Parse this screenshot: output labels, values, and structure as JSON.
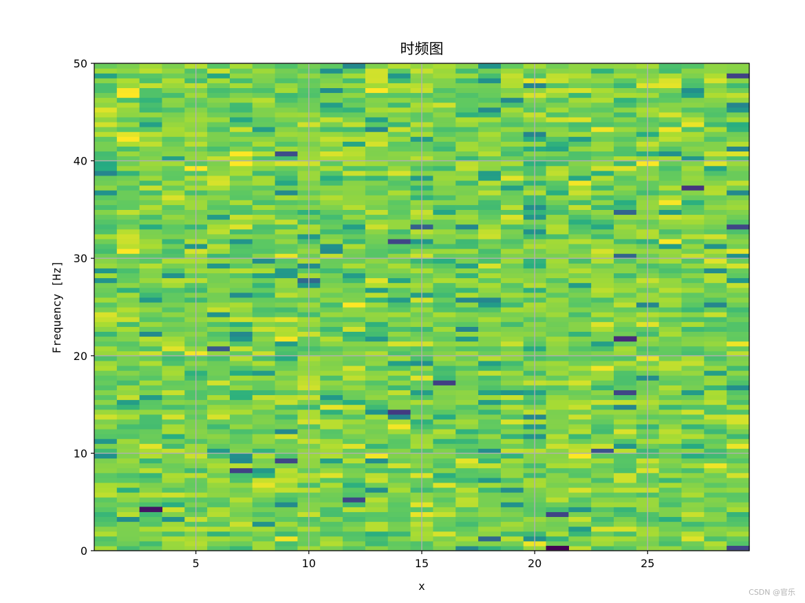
{
  "chart_data": {
    "type": "heatmap",
    "title": "时频图",
    "xlabel": "x",
    "ylabel": "Frequency [Hz]",
    "xlim": [
      0.5,
      29.5
    ],
    "ylim": [
      0,
      50
    ],
    "x_ticks": [
      5,
      10,
      15,
      20,
      25
    ],
    "y_ticks": [
      0,
      10,
      20,
      30,
      40,
      50
    ],
    "x_tick_labels": [
      "5",
      "10",
      "15",
      "20",
      "25"
    ],
    "y_tick_labels": [
      "0",
      "10",
      "20",
      "30",
      "40",
      "50"
    ],
    "n_time_bins": 29,
    "n_freq_bins": 100,
    "colormap": "viridis",
    "grid": true,
    "grid_color": "#b0b0b0",
    "background": "#ffffff",
    "seed": 20240611
  },
  "watermark": "CSDN @官乐"
}
